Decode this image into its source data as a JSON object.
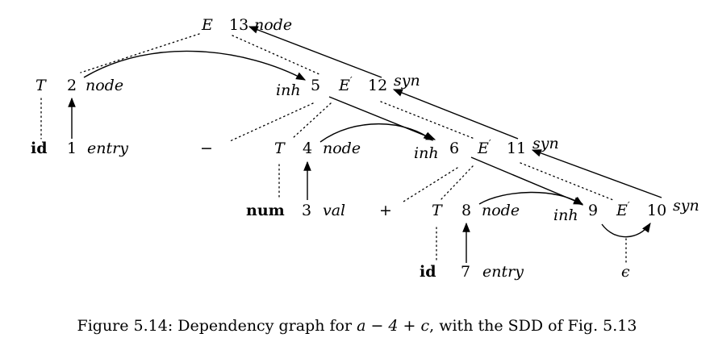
{
  "nodes": [
    {
      "id": "E",
      "symbol": "E",
      "symbol_style": "italic",
      "prime": false,
      "number": "13",
      "attr": "node",
      "attr_side": "right"
    },
    {
      "id": "T2",
      "symbol": "T",
      "symbol_style": "italic",
      "prime": false,
      "number": "2",
      "attr": "node",
      "attr_side": "right"
    },
    {
      "id": "E5",
      "symbol": "E",
      "symbol_style": "italic",
      "prime": true,
      "number": "5",
      "attr": "inh",
      "attr_side": "left",
      "number2": "12",
      "attr2": "syn"
    },
    {
      "id": "id1",
      "symbol": "id",
      "symbol_style": "bold",
      "prime": false,
      "number": "1",
      "attr": "entry",
      "attr_side": "right"
    },
    {
      "id": "minus",
      "symbol": "−",
      "symbol_style": "plain",
      "prime": false
    },
    {
      "id": "T4",
      "symbol": "T",
      "symbol_style": "italic",
      "prime": false,
      "number": "4",
      "attr": "node",
      "attr_side": "right"
    },
    {
      "id": "E6",
      "symbol": "E",
      "symbol_style": "italic",
      "prime": true,
      "number": "6",
      "attr": "inh",
      "attr_side": "left",
      "number2": "11",
      "attr2": "syn"
    },
    {
      "id": "num3",
      "symbol": "num",
      "symbol_style": "bold",
      "prime": false,
      "number": "3",
      "attr": "val",
      "attr_side": "right"
    },
    {
      "id": "plus",
      "symbol": "+",
      "symbol_style": "plain",
      "prime": false
    },
    {
      "id": "T8",
      "symbol": "T",
      "symbol_style": "italic",
      "prime": false,
      "number": "8",
      "attr": "node",
      "attr_side": "right"
    },
    {
      "id": "E9",
      "symbol": "E",
      "symbol_style": "italic",
      "prime": true,
      "number": "9",
      "attr": "inh",
      "attr_side": "left",
      "number2": "10",
      "attr2": "syn"
    },
    {
      "id": "id7",
      "symbol": "id",
      "symbol_style": "bold",
      "prime": false,
      "number": "7",
      "attr": "entry",
      "attr_side": "right"
    },
    {
      "id": "eps",
      "symbol": "ϵ",
      "symbol_style": "italic",
      "prime": false
    }
  ],
  "parse_tree_edges": [
    [
      "E",
      "T2"
    ],
    [
      "E",
      "E5"
    ],
    [
      "T2",
      "id1"
    ],
    [
      "E5",
      "minus"
    ],
    [
      "E5",
      "T4"
    ],
    [
      "E5",
      "E6"
    ],
    [
      "T4",
      "num3"
    ],
    [
      "E6",
      "plus"
    ],
    [
      "E6",
      "T8"
    ],
    [
      "E6",
      "E9"
    ],
    [
      "T8",
      "id7"
    ],
    [
      "E9",
      "eps"
    ]
  ],
  "dependency_edges": [
    {
      "from": "1",
      "to": "2"
    },
    {
      "from": "2",
      "to": "5"
    },
    {
      "from": "3",
      "to": "4"
    },
    {
      "from": "5",
      "to": "6"
    },
    {
      "from": "4",
      "to": "6"
    },
    {
      "from": "7",
      "to": "8"
    },
    {
      "from": "6",
      "to": "9"
    },
    {
      "from": "8",
      "to": "9"
    },
    {
      "from": "9",
      "to": "10"
    },
    {
      "from": "10",
      "to": "11"
    },
    {
      "from": "11",
      "to": "12"
    },
    {
      "from": "12",
      "to": "13"
    }
  ],
  "caption": {
    "prefix": "Figure 5.14: Dependency graph for ",
    "expression": "a − 4 + c",
    "suffix": ", with the SDD of Fig. 5.13"
  }
}
